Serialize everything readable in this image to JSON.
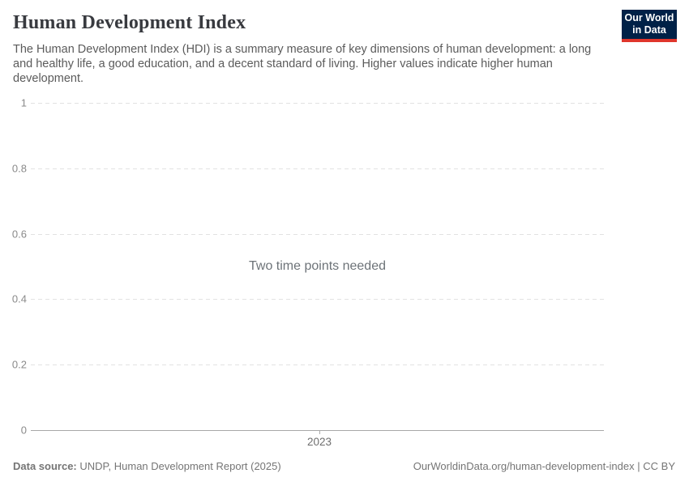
{
  "header": {
    "title": "Human Development Index",
    "subtitle": "The Human Development Index (HDI) is a summary measure of key dimensions of human development: a long and healthy life, a good education, and a decent standard of living. Higher values indicate higher human development."
  },
  "logo": {
    "line1": "Our World",
    "line2": "in Data",
    "bg_color": "#002147",
    "accent_color": "#e0362c"
  },
  "chart_data": {
    "type": "line",
    "title": "Human Development Index",
    "message": "Two time points needed",
    "series": [],
    "categories": [],
    "ylim": [
      0,
      1
    ],
    "y_ticks": [
      1,
      0.8,
      0.6,
      0.4,
      0.2,
      0
    ],
    "y_tick_labels": [
      "1",
      "0.8",
      "0.6",
      "0.4",
      "0.2",
      "0"
    ],
    "x_ticks": [
      2023
    ],
    "x_tick_labels": [
      "2023"
    ],
    "grid": "horizontal dashed, solid baseline at 0",
    "grid_color": "#e2e2e2",
    "axis_color": "#a8a8a8",
    "tick_label_color": "#8a8a8a"
  },
  "footer": {
    "datasource_label": "Data source:",
    "datasource_value": "UNDP, Human Development Report (2025)",
    "link_text": "OurWorldinData.org/human-development-index",
    "separator": "|",
    "license_text": "CC BY"
  }
}
